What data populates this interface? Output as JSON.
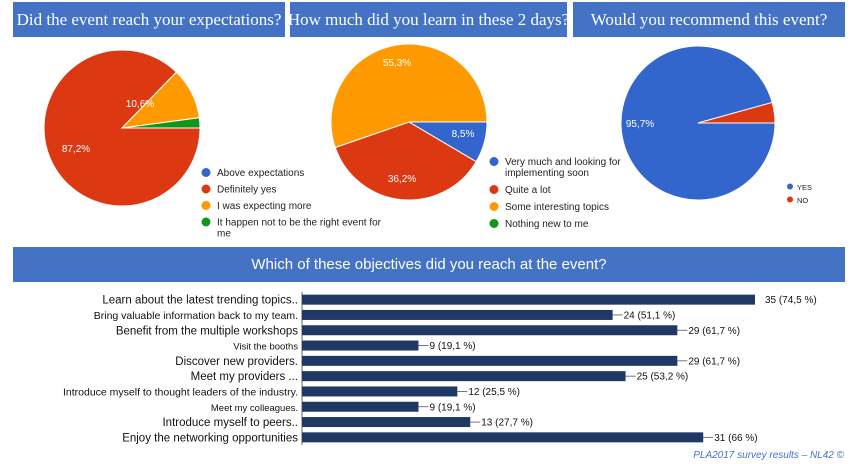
{
  "colors": {
    "header_bg": "#4472c4",
    "blue": "#3366cc",
    "red": "#dc3912",
    "orange": "#ff9900",
    "green": "#109618",
    "bar": "#1f3864"
  },
  "footer": {
    "text": "PLA2017 survey results – NL42 ©"
  },
  "chart_data": [
    {
      "type": "pie",
      "title": "Did the event reach your expectations?",
      "labels": [
        "Above expectations",
        "Definitely yes",
        "I was expecting more",
        "It happen not to be the right event for me"
      ],
      "legend_lines": [
        [
          "Above expectations"
        ],
        [
          "Definitely yes"
        ],
        [
          "I was expecting more"
        ],
        [
          "It happen not to be the right event for",
          "me"
        ]
      ],
      "values": [
        0,
        87.2,
        10.6,
        2.1
      ],
      "data_labels": [
        "",
        "87,2%",
        "10,6%",
        ""
      ],
      "colors": [
        "#3366cc",
        "#dc3912",
        "#ff9900",
        "#109618"
      ],
      "legend": "right-bottom"
    },
    {
      "type": "pie",
      "title": "How much did you learn in these 2 days?",
      "labels": [
        "Very much and looking for implementing soon",
        "Quite a lot",
        "Some interesting topics",
        "Nothing new to me"
      ],
      "legend_lines": [
        [
          "Very much and looking for",
          "implementing soon"
        ],
        [
          "Quite a lot"
        ],
        [
          "Some interesting topics"
        ],
        [
          "Nothing new to me"
        ]
      ],
      "values": [
        8.5,
        36.2,
        55.3,
        0
      ],
      "data_labels": [
        "8,5%",
        "36,2%",
        "55,3%",
        ""
      ],
      "colors": [
        "#3366cc",
        "#dc3912",
        "#ff9900",
        "#109618"
      ],
      "legend": "right-bottom"
    },
    {
      "type": "pie",
      "title": "Would you recommend this event?",
      "labels": [
        "YES",
        "NO"
      ],
      "legend_lines": [
        [
          "YES"
        ],
        [
          "NO"
        ]
      ],
      "values": [
        95.7,
        4.3
      ],
      "data_labels": [
        "95,7%",
        ""
      ],
      "colors": [
        "#3366cc",
        "#dc3912"
      ],
      "legend": "right-bottom"
    },
    {
      "type": "bar",
      "orientation": "horizontal",
      "title": "Which of these objectives did you reach at the event?",
      "categories": [
        "Learn about the latest trending topics..",
        "Bring valuable information back to my team.",
        "Benefit from the multiple workshops",
        "Visit the booths",
        "Discover new providers.",
        "Meet my providers ...",
        "Introduce myself to thought leaders of the industry.",
        "Meet my colleagues.",
        "Introduce myself to peers..",
        "Enjoy the networking opportunities"
      ],
      "values": [
        35,
        24,
        29,
        9,
        29,
        25,
        12,
        9,
        13,
        31
      ],
      "data_labels": [
        "35 (74,5 %)",
        "24 (51,1 %)",
        "29 (61,7 %)",
        "9 (19,1 %)",
        "29 (61,7 %)",
        "25 (53,2 %)",
        "12 (25,5 %)",
        "9 (19,1 %)",
        "13 (27,7 %)",
        "31 (66 %)"
      ],
      "xlim": [
        0,
        35
      ]
    }
  ]
}
